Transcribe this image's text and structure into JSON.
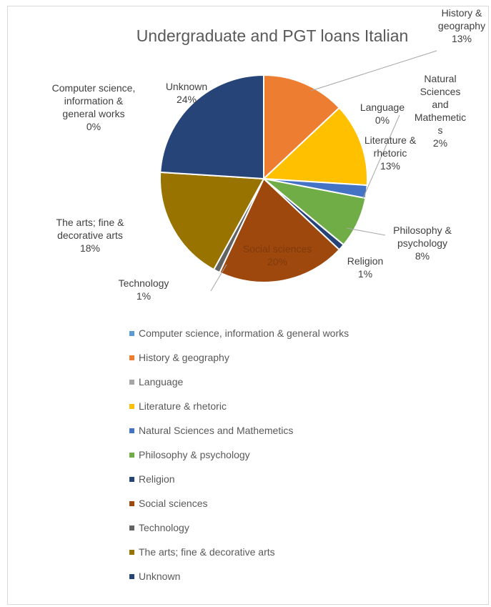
{
  "chart_data": {
    "type": "pie",
    "title": "Undergraduate and PGT loans Italian",
    "slices": [
      {
        "name": "Computer science, information & general works",
        "value": 0,
        "label": "Computer science,\ninformation &\ngeneral works\n0%",
        "color": "#5b9bd5"
      },
      {
        "name": "History & geography",
        "value": 13,
        "label": "History &\ngeography\n13%",
        "color": "#ed7d31"
      },
      {
        "name": "Language",
        "value": 0,
        "label": "Language\n0%",
        "color": "#a5a5a5"
      },
      {
        "name": "Literature & rhetoric",
        "value": 13,
        "label": "Literature &\nrhetoric\n13%",
        "color": "#ffc000"
      },
      {
        "name": "Natural Sciences and Mathemetics",
        "value": 2,
        "label": "Natural\nSciences\nand\nMathemetic\ns\n2%",
        "color": "#4472c4"
      },
      {
        "name": "Philosophy & psychology",
        "value": 8,
        "label": "Philosophy &\npsychology\n8%",
        "color": "#70ad47"
      },
      {
        "name": "Religion",
        "value": 1,
        "label": "Religion\n1%",
        "color": "#264478"
      },
      {
        "name": "Social sciences",
        "value": 20,
        "label": "Social sciences\n20%",
        "color": "#9e480e"
      },
      {
        "name": "Technology",
        "value": 1,
        "label": "Technology\n1%",
        "color": "#636363"
      },
      {
        "name": "The arts; fine & decorative arts",
        "value": 18,
        "label": "The arts; fine &\ndecorative arts\n18%",
        "color": "#997300"
      },
      {
        "name": "Unknown",
        "value": 24,
        "label": "Unknown\n24%",
        "color": "#264478"
      }
    ],
    "legend_position": "bottom"
  }
}
